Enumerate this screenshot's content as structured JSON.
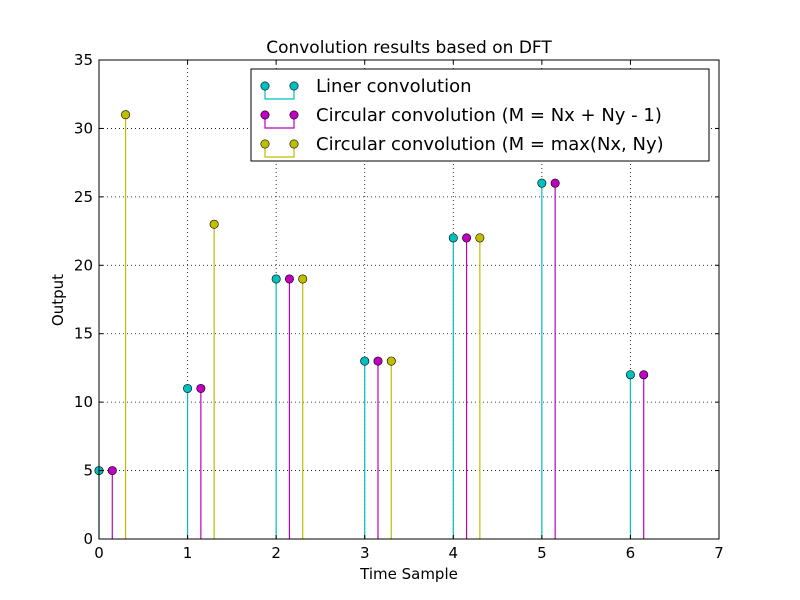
{
  "chart_data": {
    "type": "stem",
    "title": "Convolution results based on DFT",
    "xlabel": "Time Sample",
    "ylabel": "Output",
    "xlim": [
      0,
      7
    ],
    "ylim": [
      0,
      35
    ],
    "xticks": [
      "0",
      "1",
      "2",
      "3",
      "4",
      "5",
      "6",
      "7"
    ],
    "yticks": [
      "0",
      "5",
      "10",
      "15",
      "20",
      "25",
      "30",
      "35"
    ],
    "grid": true,
    "legend_position": "top-right",
    "series": [
      {
        "name": "Liner convolution",
        "color": "#00bfbf",
        "x": [
          0,
          1,
          2,
          3,
          4,
          5,
          6
        ],
        "values": [
          5,
          11,
          19,
          13,
          22,
          26,
          12
        ]
      },
      {
        "name": "Circular convolution (M = Nx + Ny - 1)",
        "color": "#bf00bf",
        "x": [
          0.15,
          1.15,
          2.15,
          3.15,
          4.15,
          5.15,
          6.15
        ],
        "values": [
          5,
          11,
          19,
          13,
          22,
          26,
          12
        ]
      },
      {
        "name": "Circular convolution (M = max(Nx, Ny)",
        "color": "#bfbf00",
        "x": [
          0.3,
          1.3,
          2.3,
          3.3,
          4.3
        ],
        "values": [
          31,
          23,
          19,
          13,
          22
        ]
      }
    ]
  }
}
